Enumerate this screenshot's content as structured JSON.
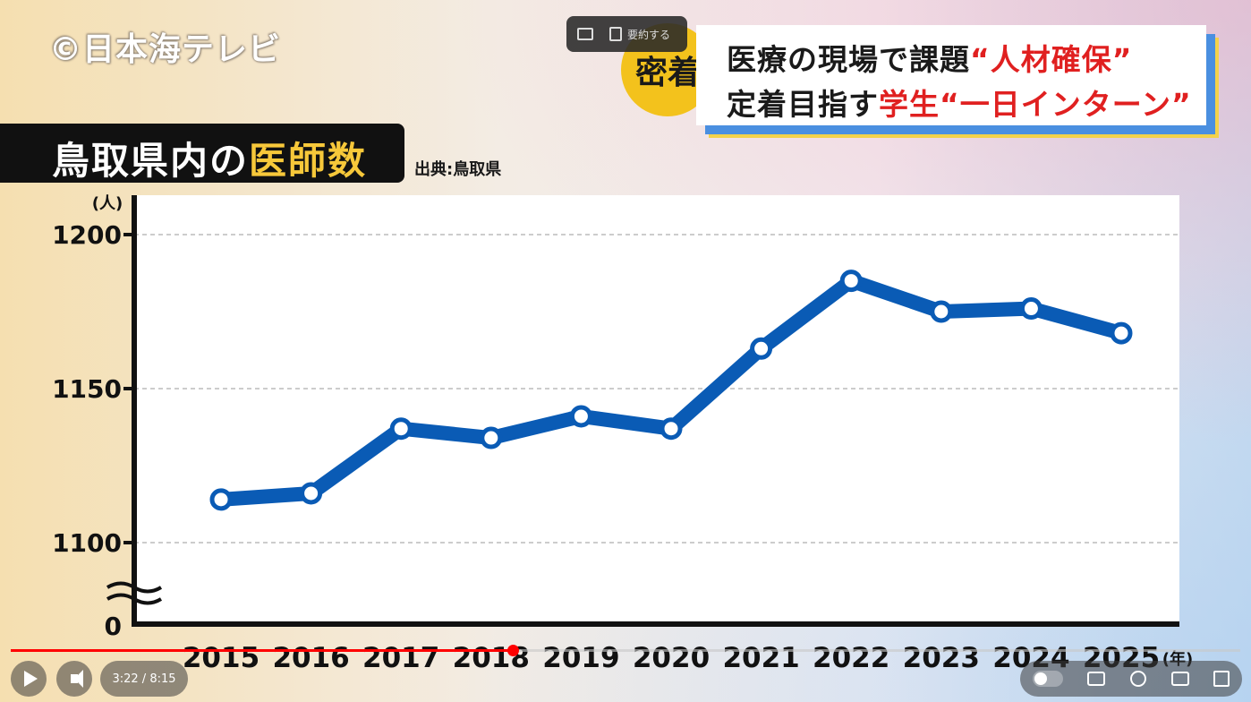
{
  "watermark": "©日本海テレビ",
  "overlay_chip": {
    "summary_label": "要約する"
  },
  "badge": {
    "text": "密着"
  },
  "headline": {
    "line1_black": "医療の現場で課題",
    "line1_red": "“人材確保”",
    "line2_black": "定着目指す",
    "line2_red": "学生“一日インターン”"
  },
  "title": {
    "black": "鳥取県内の",
    "highlight": "医師数"
  },
  "source": "出典:鳥取県",
  "chart_data": {
    "type": "line",
    "x": [
      "2015",
      "2016",
      "2017",
      "2018",
      "2019",
      "2020",
      "2021",
      "2022",
      "2023",
      "2024",
      "2025"
    ],
    "series": [
      {
        "values": [
          1114,
          1116,
          1137,
          1134,
          1141,
          1137,
          1163,
          1185,
          1175,
          1176,
          1168
        ]
      }
    ],
    "yticks": [
      1100,
      1150,
      1200
    ],
    "ybreak_label": "0",
    "ylim": [
      1075,
      1210
    ],
    "yunit": "(人)",
    "xunit": "(年)",
    "line_color": "#0a5bb5",
    "grid": true
  },
  "player": {
    "time": "3:22 / 8:15",
    "progress_fraction": 0.408
  },
  "colors": {
    "accent_red": "#e02020",
    "badge_yellow": "#f3c21c",
    "title_highlight": "#f7c83a"
  }
}
